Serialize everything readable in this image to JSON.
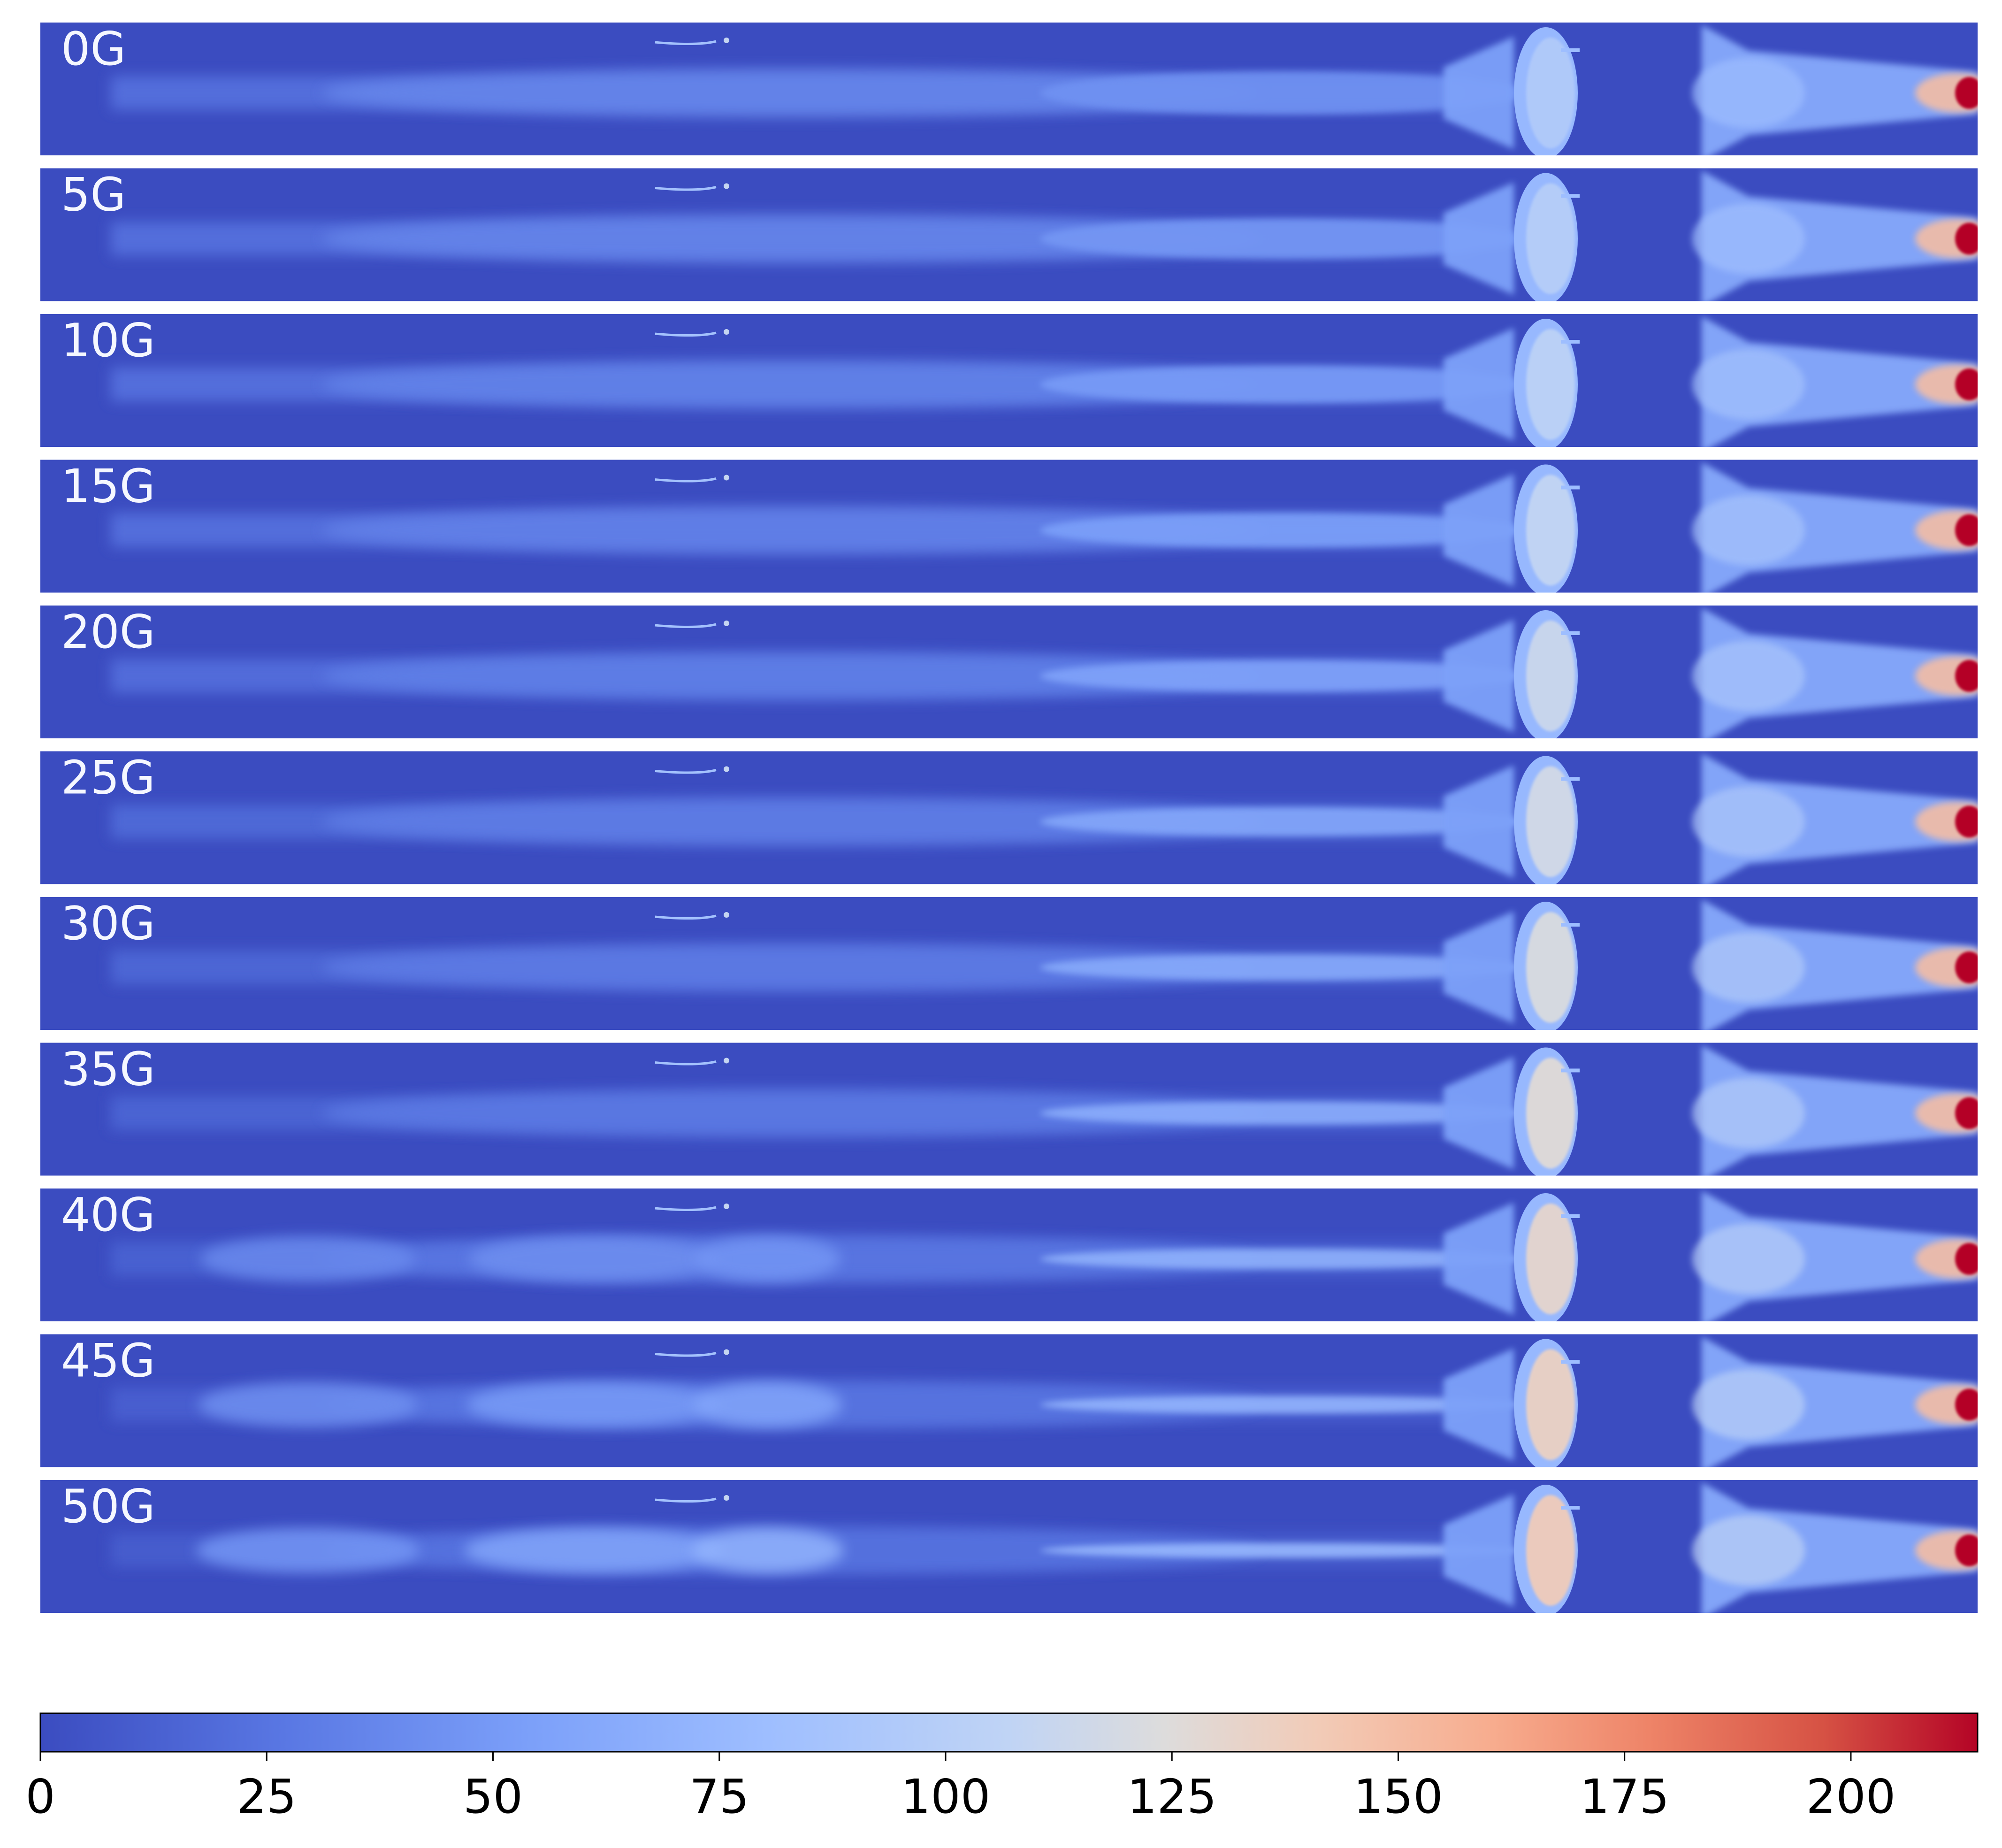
{
  "chart_data": {
    "type": "heatmap",
    "panels": [
      {
        "label": "0G",
        "field": 0
      },
      {
        "label": "5G",
        "field": 5
      },
      {
        "label": "10G",
        "field": 10
      },
      {
        "label": "15G",
        "field": 15
      },
      {
        "label": "20G",
        "field": 20
      },
      {
        "label": "25G",
        "field": 25
      },
      {
        "label": "30G",
        "field": 30
      },
      {
        "label": "35G",
        "field": 35
      },
      {
        "label": "40G",
        "field": 40
      },
      {
        "label": "45G",
        "field": 45
      },
      {
        "label": "50G",
        "field": 50
      }
    ],
    "colorbar": {
      "colormap": "coolwarm",
      "range": [
        0,
        214
      ],
      "ticks": [
        0,
        25,
        50,
        75,
        100,
        125,
        150,
        175,
        200
      ],
      "tick_labels": [
        "0",
        "25",
        "50",
        "75",
        "100",
        "125",
        "150",
        "175",
        "200"
      ],
      "orientation": "horizontal",
      "position": "bottom"
    },
    "colors": {
      "low": "#3b4cc0",
      "mid": "#dddddd",
      "high": "#b40426",
      "panel_label": "#f5f7ff"
    },
    "features": {
      "background_value": 0,
      "plume_value_range": [
        15,
        75
      ],
      "lens_center_value_range": [
        100,
        145
      ],
      "right_source_peak_value": 214
    }
  }
}
